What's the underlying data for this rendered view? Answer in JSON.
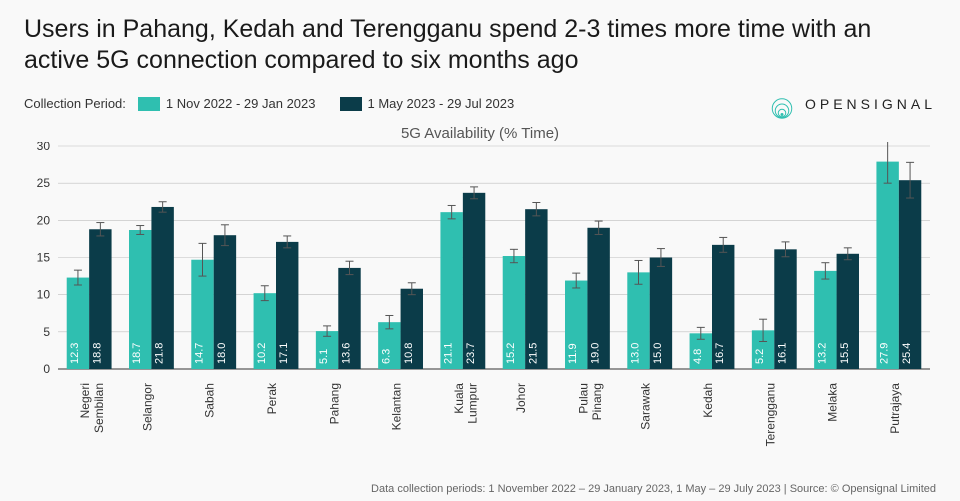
{
  "title": "Users in Pahang, Kedah and Terengganu spend 2-3 times more time with an active 5G connection compared to six months ago",
  "legend_label": "Collection Period:",
  "legend_items": [
    {
      "label": "1 Nov 2022 - 29 Jan 2023",
      "color": "#2fbfb0"
    },
    {
      "label": "1 May 2023 - 29 Jul 2023",
      "color": "#0b3c49"
    }
  ],
  "logo_text": "OPENSIGNAL",
  "subtitle": "5G Availability (% Time)",
  "footer": "Data collection periods: 1 November 2022 – 29 January 2023, 1 May – 29 July 2023 | Source: © Opensignal Limited",
  "chart": {
    "type": "grouped-bar",
    "ylim": [
      0,
      30
    ],
    "ytick_step": 5,
    "background_color": "#f9f9f9",
    "grid_color": "#bfbfbf",
    "axis_color": "#333333",
    "axis_font_size": 12,
    "value_label_font_size": 11,
    "value_label_color": "#ffffff",
    "category_label_color": "#333333",
    "category_label_font_size": 12,
    "bar_group_width": 0.72,
    "error_bar_color": "#555555",
    "categories": [
      "Negeri Sembilan",
      "Selangor",
      "Sabah",
      "Perak",
      "Pahang",
      "Kelantan",
      "Kuala Lumpur",
      "Johor",
      "Pulau Pinang",
      "Sarawak",
      "Kedah",
      "Terengganu",
      "Melaka",
      "Putrajaya"
    ],
    "series": [
      {
        "color": "#2fbfb0",
        "values": [
          12.3,
          18.7,
          14.7,
          10.2,
          5.1,
          6.3,
          21.1,
          15.2,
          11.9,
          13.0,
          4.8,
          5.2,
          13.2,
          27.9
        ],
        "errors": [
          1.0,
          0.6,
          2.2,
          1.0,
          0.7,
          0.9,
          0.9,
          0.9,
          1.0,
          1.6,
          0.8,
          1.5,
          1.1,
          2.9
        ]
      },
      {
        "color": "#0b3c49",
        "values": [
          18.8,
          21.8,
          18.0,
          17.1,
          13.6,
          10.8,
          23.7,
          21.5,
          19.0,
          15.0,
          16.7,
          16.1,
          15.5,
          25.4
        ],
        "errors": [
          0.9,
          0.7,
          1.4,
          0.8,
          0.9,
          0.8,
          0.8,
          0.9,
          0.9,
          1.2,
          1.0,
          1.0,
          0.8,
          2.4
        ]
      }
    ]
  }
}
